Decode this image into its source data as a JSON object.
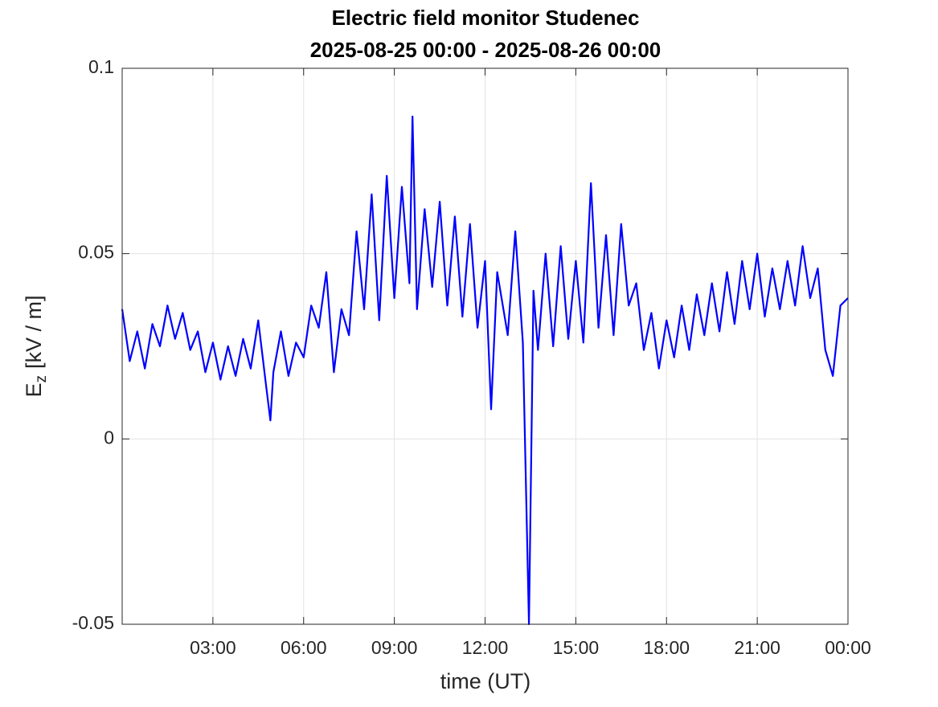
{
  "chart_data": {
    "type": "line",
    "title": "Electric field monitor Studenec",
    "subtitle": "2025-08-25 00:00 - 2025-08-26 00:00",
    "xlabel": "time (UT)",
    "ylabel": {
      "symbol": "E",
      "subscript": "z",
      "unit": "[kV / m]"
    },
    "xlim": [
      0,
      24
    ],
    "xticks": [
      {
        "value": 3,
        "label": "03:00"
      },
      {
        "value": 6,
        "label": "06:00"
      },
      {
        "value": 9,
        "label": "09:00"
      },
      {
        "value": 12,
        "label": "12:00"
      },
      {
        "value": 15,
        "label": "15:00"
      },
      {
        "value": 18,
        "label": "18:00"
      },
      {
        "value": 21,
        "label": "21:00"
      },
      {
        "value": 24,
        "label": "00:00"
      }
    ],
    "ylim": [
      -0.05,
      0.1
    ],
    "yticks": [
      -0.05,
      0,
      0.05,
      0.1
    ],
    "grid": true,
    "x": [
      0,
      0.25,
      0.5,
      0.75,
      1.0,
      1.25,
      1.5,
      1.75,
      2.0,
      2.25,
      2.5,
      2.75,
      3.0,
      3.25,
      3.5,
      3.75,
      4.0,
      4.25,
      4.5,
      4.75,
      4.9,
      5.0,
      5.25,
      5.5,
      5.75,
      6.0,
      6.25,
      6.5,
      6.75,
      7.0,
      7.25,
      7.5,
      7.75,
      8.0,
      8.25,
      8.5,
      8.75,
      9.0,
      9.25,
      9.5,
      9.6,
      9.75,
      10.0,
      10.25,
      10.5,
      10.75,
      11.0,
      11.25,
      11.5,
      11.75,
      12.0,
      12.2,
      12.4,
      12.75,
      13.0,
      13.25,
      13.45,
      13.6,
      13.75,
      14.0,
      14.25,
      14.5,
      14.75,
      15.0,
      15.25,
      15.5,
      15.75,
      16.0,
      16.25,
      16.5,
      16.75,
      17.0,
      17.25,
      17.5,
      17.75,
      18.0,
      18.25,
      18.5,
      18.75,
      19.0,
      19.25,
      19.5,
      19.75,
      20.0,
      20.25,
      20.5,
      20.75,
      21.0,
      21.25,
      21.5,
      21.75,
      22.0,
      22.25,
      22.5,
      22.75,
      23.0,
      23.25,
      23.5,
      23.75,
      24.0
    ],
    "series": [
      {
        "color": "#0000ff",
        "values": [
          0.035,
          0.021,
          0.029,
          0.019,
          0.031,
          0.025,
          0.036,
          0.027,
          0.034,
          0.024,
          0.029,
          0.018,
          0.026,
          0.016,
          0.025,
          0.017,
          0.027,
          0.019,
          0.032,
          0.015,
          0.005,
          0.018,
          0.029,
          0.017,
          0.026,
          0.022,
          0.036,
          0.03,
          0.045,
          0.018,
          0.035,
          0.028,
          0.056,
          0.035,
          0.066,
          0.032,
          0.071,
          0.038,
          0.068,
          0.042,
          0.087,
          0.035,
          0.062,
          0.041,
          0.064,
          0.036,
          0.06,
          0.033,
          0.058,
          0.03,
          0.048,
          0.008,
          0.045,
          0.028,
          0.056,
          0.026,
          -0.05,
          0.04,
          0.024,
          0.05,
          0.025,
          0.052,
          0.027,
          0.048,
          0.026,
          0.069,
          0.03,
          0.055,
          0.028,
          0.058,
          0.036,
          0.042,
          0.024,
          0.034,
          0.019,
          0.032,
          0.022,
          0.036,
          0.024,
          0.039,
          0.028,
          0.042,
          0.029,
          0.045,
          0.031,
          0.048,
          0.035,
          0.05,
          0.033,
          0.046,
          0.035,
          0.048,
          0.036,
          0.052,
          0.038,
          0.046,
          0.024,
          0.017,
          0.036,
          0.038
        ]
      }
    ]
  }
}
